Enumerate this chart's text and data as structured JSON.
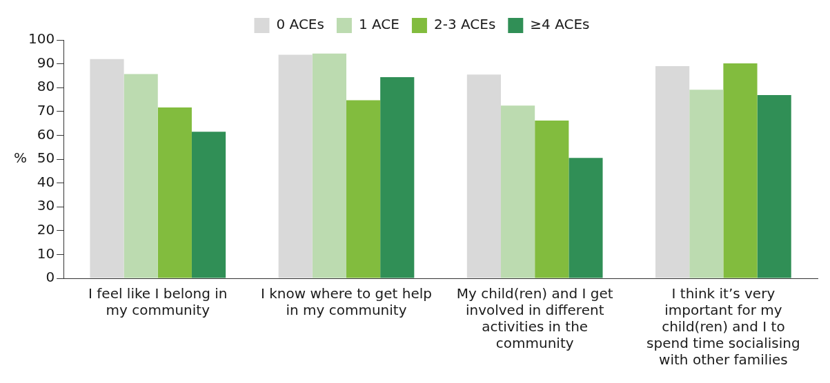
{
  "chart_data": {
    "type": "bar",
    "ylabel": "%",
    "categories": [
      "I feel like I belong in my community",
      "I know where to get help in my community",
      "My child(ren) and I get involved in different activities in the community",
      "I think it’s very important for my child(ren) and I to spend time socialising with other families"
    ],
    "series": [
      {
        "name": "0 ACEs",
        "color": "#d9d9d9",
        "values": [
          92,
          93.8,
          85.5,
          89
        ]
      },
      {
        "name": "1 ACE",
        "color": "#bcdbb0",
        "values": [
          85.7,
          94.3,
          72.5,
          79.1
        ]
      },
      {
        "name": "2-3 ACEs",
        "color": "#82bc3e",
        "values": [
          71.7,
          74.7,
          66.2,
          90.2
        ]
      },
      {
        "name": "≥4 ACEs",
        "color": "#308f56",
        "values": [
          61.5,
          84.4,
          50.5,
          76.9
        ]
      }
    ],
    "ylim": [
      0,
      100
    ],
    "yticks": [
      0,
      10,
      20,
      30,
      40,
      50,
      60,
      70,
      80,
      90,
      100
    ],
    "grid": false,
    "legend": "top"
  }
}
